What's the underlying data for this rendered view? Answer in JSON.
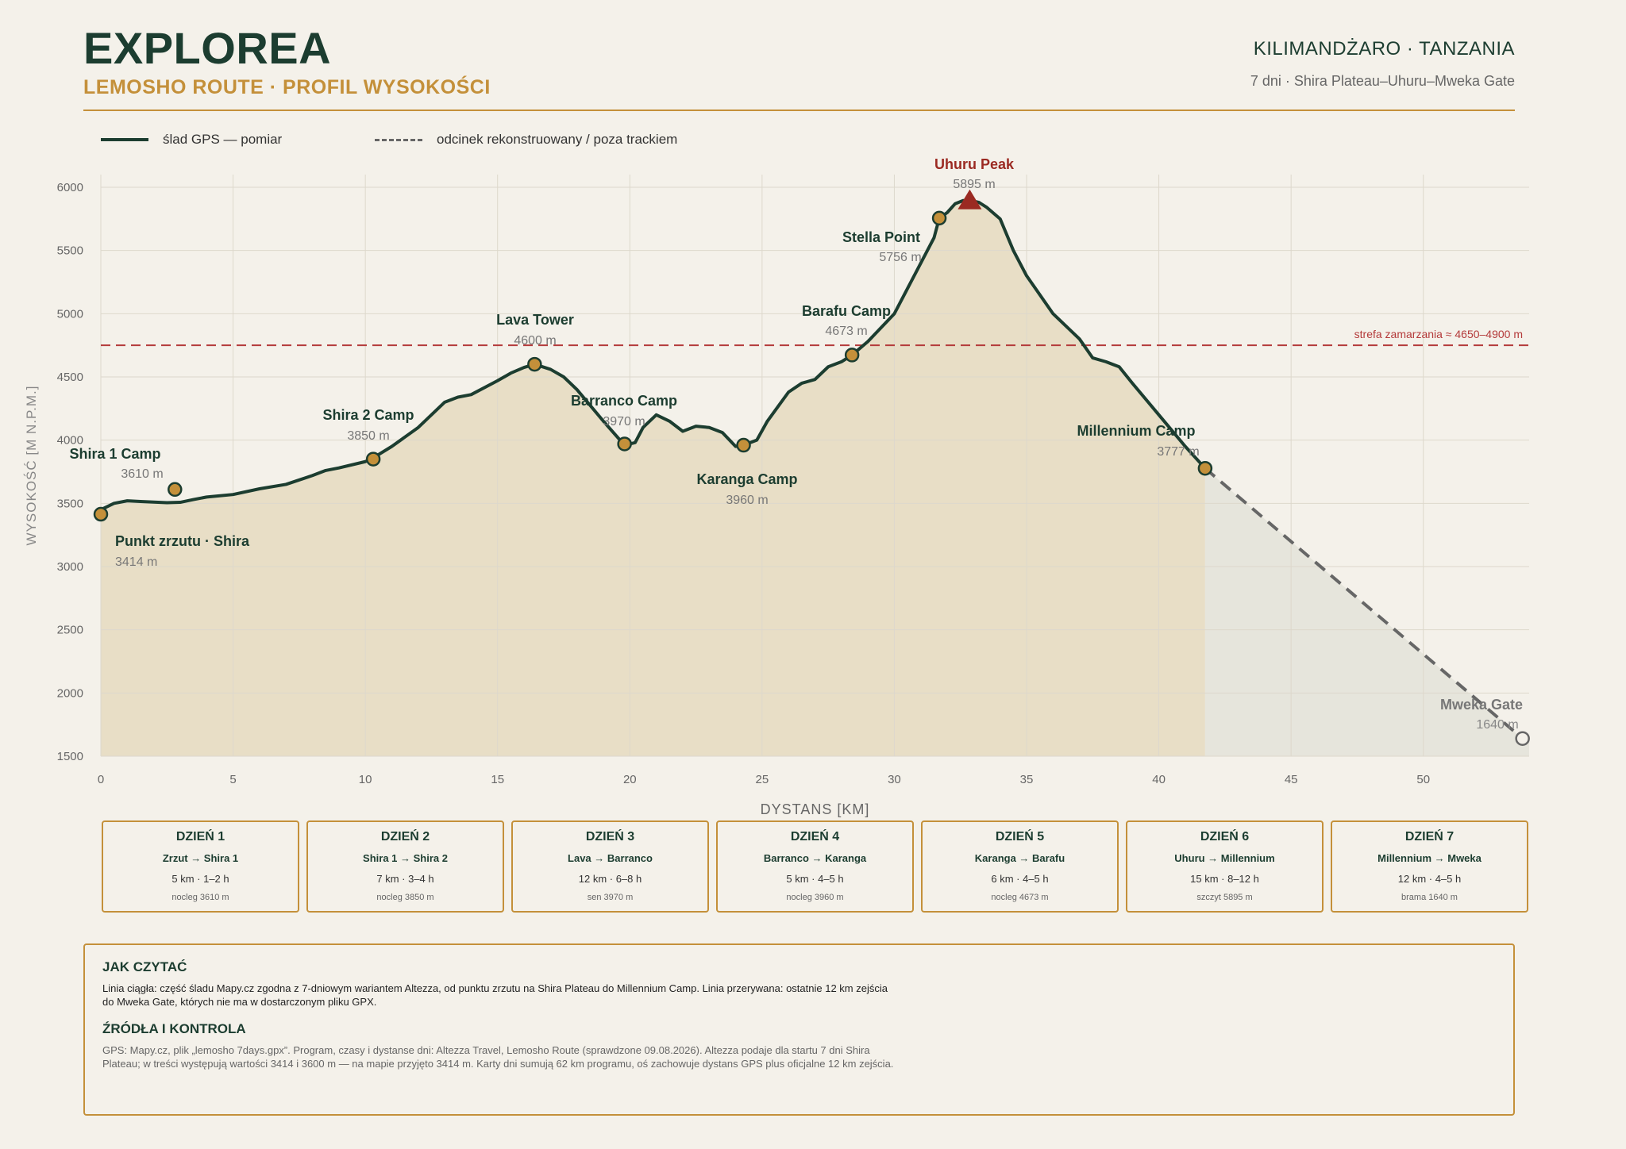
{
  "header": {
    "brand": "EXPLOREA",
    "subtitle": "LEMOSHO ROUTE · PROFIL WYSOKOŚCI",
    "region": "KILIMANDŻARO · TANZANIA",
    "trip": "7 dni · Shira Plateau–Uhuru–Mweka Gate"
  },
  "legend": {
    "measured": "ślad GPS — pomiar",
    "reconstructed": "odcinek rekonstruowany / poza trackiem"
  },
  "colors": {
    "track": "#1c3d30",
    "fill": "#e8dec6",
    "fill_reconstructed": "#e6e5dc",
    "marker": "#c4903a",
    "summit": "#9b2a22",
    "freeze_line": "#b43a3a",
    "accent": "#c4903a"
  },
  "chart_data": {
    "type": "area",
    "xlabel": "DYSTANS [KM]",
    "ylabel": "WYSOKOŚĆ [M N.P.M.]",
    "xlim": [
      0,
      54
    ],
    "ylim": [
      1500,
      6100
    ],
    "xticks": [
      0,
      5,
      10,
      15,
      20,
      25,
      30,
      35,
      40,
      45,
      50
    ],
    "yticks": [
      1500,
      2000,
      2500,
      3000,
      3500,
      4000,
      4500,
      5000,
      5500,
      6000
    ],
    "grid": true,
    "series": [
      {
        "name": "ślad GPS — pomiar",
        "style": "solid",
        "x": [
          0,
          0.5,
          1,
          1.5,
          2,
          2.5,
          3,
          3.5,
          4,
          5,
          6,
          7,
          8,
          8.5,
          9,
          10,
          10.3,
          11,
          12,
          13,
          13.5,
          14,
          15,
          15.5,
          16,
          16.4,
          17,
          17.5,
          18,
          19,
          19.8,
          20.2,
          20.5,
          21,
          21.5,
          22,
          22.5,
          23,
          23.5,
          24,
          24.3,
          24.8,
          25.2,
          26,
          26.5,
          27,
          27.5,
          28,
          28.4,
          29,
          30,
          30.5,
          31,
          31.5,
          31.7,
          32,
          32.3,
          32.6,
          32.9,
          33.2,
          33.5,
          34,
          34.5,
          35,
          36,
          37,
          37.5,
          38,
          38.5,
          39,
          40,
          41,
          41.75
        ],
        "y": [
          3450,
          3500,
          3520,
          3515,
          3510,
          3505,
          3508,
          3530,
          3550,
          3570,
          3615,
          3650,
          3720,
          3760,
          3780,
          3830,
          3860,
          3950,
          4100,
          4300,
          4340,
          4360,
          4470,
          4530,
          4575,
          4600,
          4560,
          4500,
          4400,
          4150,
          3960,
          3980,
          4100,
          4200,
          4150,
          4070,
          4110,
          4100,
          4060,
          3950,
          3960,
          4000,
          4150,
          4380,
          4450,
          4480,
          4580,
          4620,
          4673,
          4780,
          5000,
          5200,
          5400,
          5600,
          5756,
          5800,
          5870,
          5895,
          5895,
          5880,
          5840,
          5750,
          5500,
          5300,
          5000,
          4800,
          4650,
          4620,
          4580,
          4450,
          4200,
          3950,
          3777
        ]
      },
      {
        "name": "odcinek rekonstruowany / poza trackiem",
        "style": "dashed",
        "x": [
          41.75,
          53.75
        ],
        "y": [
          3777,
          1640
        ]
      }
    ],
    "points": [
      {
        "name": "Punkt zrzutu · Shira",
        "elev_label": "3414 m",
        "x": 0,
        "y": 3414
      },
      {
        "name": "Shira 1 Camp",
        "elev_label": "3610 m",
        "x": 2.8,
        "y": 3610
      },
      {
        "name": "Shira 2 Camp",
        "elev_label": "3850 m",
        "x": 10.3,
        "y": 3850
      },
      {
        "name": "Lava Tower",
        "elev_label": "4600 m",
        "x": 16.4,
        "y": 4600
      },
      {
        "name": "Barranco Camp",
        "elev_label": "3970 m",
        "x": 19.8,
        "y": 3970
      },
      {
        "name": "Karanga Camp",
        "elev_label": "3960 m",
        "x": 24.3,
        "y": 3960
      },
      {
        "name": "Barafu Camp",
        "elev_label": "4673 m",
        "x": 28.4,
        "y": 4673
      },
      {
        "name": "Stella Point",
        "elev_label": "5756 m",
        "x": 31.7,
        "y": 5756
      },
      {
        "name": "Uhuru Peak",
        "elev_label": "5895 m",
        "x": 32.85,
        "y": 5895,
        "marker": "summit"
      },
      {
        "name": "Millennium Camp",
        "elev_label": "3777 m",
        "x": 41.75,
        "y": 3777
      },
      {
        "name": "Mweka Gate",
        "elev_label": "1640 m",
        "x": 53.75,
        "y": 1640,
        "marker": "hollow"
      }
    ],
    "annotations": [
      {
        "text": "strefa zamarzania ≈ 4650–4900 m",
        "type": "hline",
        "y": 4750
      }
    ]
  },
  "days": [
    {
      "title": "DZIEŃ 1",
      "route": "Zrzut → Shira 1",
      "stats": "5 km · 1–2 h",
      "note": "nocleg 3610 m"
    },
    {
      "title": "DZIEŃ 2",
      "route": "Shira 1 → Shira 2",
      "stats": "7 km · 3–4 h",
      "note": "nocleg 3850 m"
    },
    {
      "title": "DZIEŃ 3",
      "route": "Lava → Barranco",
      "stats": "12 km · 6–8 h",
      "note": "sen 3970 m"
    },
    {
      "title": "DZIEŃ 4",
      "route": "Barranco → Karanga",
      "stats": "5 km · 4–5 h",
      "note": "nocleg 3960 m"
    },
    {
      "title": "DZIEŃ 5",
      "route": "Karanga → Barafu",
      "stats": "6 km · 4–5 h",
      "note": "nocleg 4673 m"
    },
    {
      "title": "DZIEŃ 6",
      "route": "Uhuru → Millennium",
      "stats": "15 km · 8–12 h",
      "note": "szczyt 5895 m"
    },
    {
      "title": "DZIEŃ 7",
      "route": "Millennium → Mweka",
      "stats": "12 km · 4–5 h",
      "note": "brama 1640 m"
    }
  ],
  "notes": {
    "howto_title": "JAK CZYTAĆ",
    "howto_text": "Linia ciągła: część śladu Mapy.cz zgodna z 7-dniowym wariantem Altezza, od punktu zrzutu na Shira Plateau do Millennium Camp. Linia przerywana: ostatnie 12 km zejścia do Mweka Gate, których nie ma w dostarczonym pliku GPX.",
    "sources_title": "ŹRÓDŁA I KONTROLA",
    "sources_text": "GPS: Mapy.cz, plik „lemosho 7days.gpx”. Program, czasy i dystanse dni: Altezza Travel, Lemosho Route (sprawdzone 09.08.2026). Altezza podaje dla startu 7 dni Shira Plateau; w treści występują wartości 3414 i 3600 m — na mapie przyjęto 3414 m. Karty dni sumują 62 km programu, oś zachowuje dystans GPS plus oficjalne 12 km zejścia."
  }
}
